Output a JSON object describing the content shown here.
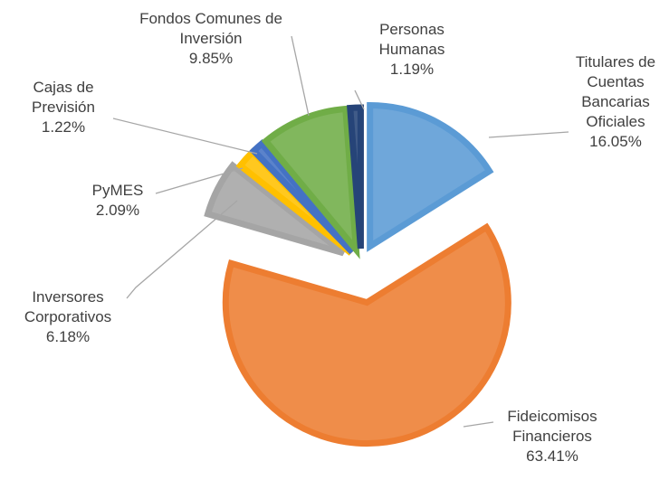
{
  "chart_data": {
    "type": "pie",
    "categories": [
      "Titulares de Cuentas Bancarias Oficiales",
      "Fideicomisos Financieros",
      "Inversores Corporativos",
      "PyMES",
      "Cajas de Previsión",
      "Fondos Comunes de Inversión",
      "Personas Humanas"
    ],
    "values": [
      16.05,
      63.41,
      6.18,
      2.09,
      1.22,
      9.85,
      1.19
    ],
    "value_labels": [
      "16.05%",
      "63.41%",
      "6.18%",
      "2.09%",
      "1.22%",
      "9.85%",
      "1.19%"
    ],
    "colors": [
      "#5b9bd5",
      "#ed7d31",
      "#a5a5a5",
      "#ffc000",
      "#4472c4",
      "#70ad47",
      "#264478"
    ]
  }
}
